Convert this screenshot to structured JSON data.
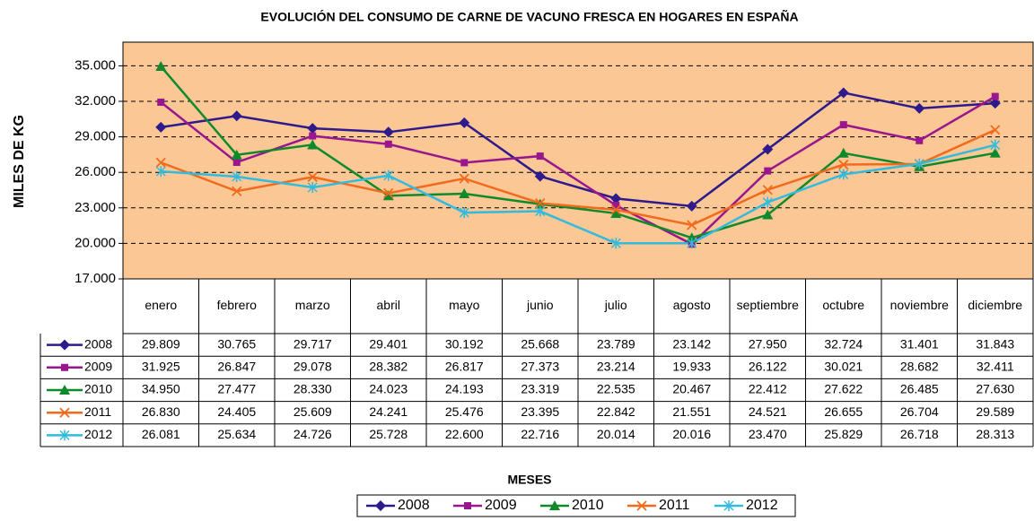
{
  "chart_data": {
    "type": "line",
    "title": "EVOLUCIÓN DEL CONSUMO DE CARNE DE VACUNO FRESCA EN HOGARES EN ESPAÑA",
    "x_label": "MESES",
    "y_label": "MILES DE KG",
    "categories": [
      "enero",
      "febrero",
      "marzo",
      "abril",
      "mayo",
      "junio",
      "julio",
      "agosto",
      "septiembre",
      "octubre",
      "noviembre",
      "diciembre"
    ],
    "ylim": [
      17000,
      37000
    ],
    "yticks": [
      {
        "value": 17000,
        "label": "17.000"
      },
      {
        "value": 20000,
        "label": "20.000"
      },
      {
        "value": 23000,
        "label": "23.000"
      },
      {
        "value": 26000,
        "label": "26.000"
      },
      {
        "value": 29000,
        "label": "29.000"
      },
      {
        "value": 32000,
        "label": "32.000"
      },
      {
        "value": 35000,
        "label": "35.000"
      }
    ],
    "grid": true,
    "plot_background": "#fac795",
    "data_table": true,
    "legend": "bottom",
    "series": [
      {
        "name": "2008",
        "color": "#2e1a8c",
        "marker": "diamond",
        "values": [
          29809,
          30765,
          29717,
          29401,
          30192,
          25668,
          23789,
          23142,
          27950,
          32724,
          31401,
          31843
        ],
        "value_labels": [
          "29.809",
          "30.765",
          "29.717",
          "29.401",
          "30.192",
          "25.668",
          "23.789",
          "23.142",
          "27.950",
          "32.724",
          "31.401",
          "31.843"
        ]
      },
      {
        "name": "2009",
        "color": "#99168e",
        "marker": "square",
        "values": [
          31925,
          26847,
          29078,
          28382,
          26817,
          27373,
          23214,
          19933,
          26122,
          30021,
          28682,
          32411
        ],
        "value_labels": [
          "31.925",
          "26.847",
          "29.078",
          "28.382",
          "26.817",
          "27.373",
          "23.214",
          "19.933",
          "26.122",
          "30.021",
          "28.682",
          "32.411"
        ]
      },
      {
        "name": "2010",
        "color": "#0e8a2b",
        "marker": "triangle",
        "values": [
          34950,
          27477,
          28330,
          24023,
          24193,
          23319,
          22535,
          20467,
          22412,
          27622,
          26485,
          27630
        ],
        "value_labels": [
          "34.950",
          "27.477",
          "28.330",
          "24.023",
          "24.193",
          "23.319",
          "22.535",
          "20.467",
          "22.412",
          "27.622",
          "26.485",
          "27.630"
        ]
      },
      {
        "name": "2011",
        "color": "#f26b1d",
        "marker": "x",
        "values": [
          26830,
          24405,
          25609,
          24241,
          25476,
          23395,
          22842,
          21551,
          24521,
          26655,
          26704,
          29589
        ],
        "value_labels": [
          "26.830",
          "24.405",
          "25.609",
          "24.241",
          "25.476",
          "23.395",
          "22.842",
          "21.551",
          "24.521",
          "26.655",
          "26.704",
          "29.589"
        ]
      },
      {
        "name": "2012",
        "color": "#33bbdd",
        "marker": "star",
        "values": [
          26081,
          25634,
          24726,
          25728,
          22600,
          22716,
          20014,
          20016,
          23470,
          25829,
          26718,
          28313
        ],
        "value_labels": [
          "26.081",
          "25.634",
          "24.726",
          "25.728",
          "22.600",
          "22.716",
          "20.014",
          "20.016",
          "23.470",
          "25.829",
          "26.718",
          "28.313"
        ]
      }
    ]
  }
}
